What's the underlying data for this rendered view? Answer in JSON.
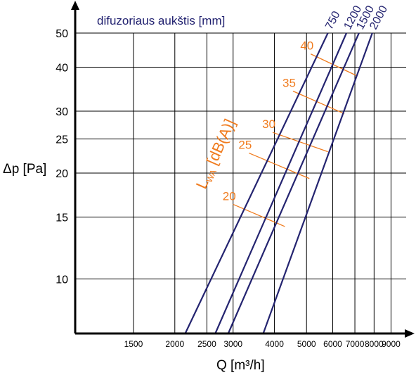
{
  "chart_data": {
    "type": "line",
    "title": "difuzoriaus aukštis [mm]",
    "xlabel": "Q [m³/h]",
    "ylabel": "Δp [Pa]",
    "xscale": "log",
    "yscale": "log",
    "xlim": [
      1000,
      10000
    ],
    "ylim": [
      7,
      50
    ],
    "xticks": [
      1500,
      2000,
      2500,
      3000,
      4000,
      5000,
      6000,
      7000,
      8000,
      9000
    ],
    "yticks": [
      10,
      15,
      20,
      25,
      30,
      40,
      50
    ],
    "grid": true,
    "series": [
      {
        "name": "750",
        "points": [
          [
            2150,
            7
          ],
          [
            5800,
            50
          ]
        ]
      },
      {
        "name": "1200",
        "points": [
          [
            2650,
            7
          ],
          [
            6600,
            50
          ]
        ]
      },
      {
        "name": "1500",
        "points": [
          [
            2900,
            7
          ],
          [
            7200,
            50
          ]
        ]
      },
      {
        "name": "2000",
        "points": [
          [
            3700,
            7
          ],
          [
            7900,
            50
          ]
        ]
      }
    ],
    "noise_annotation": {
      "label": "LWA [dB(A)]",
      "label_main": "L",
      "label_sub": "WA",
      "label_rest": " [dB(A)]",
      "lines": [
        {
          "level": "20",
          "points": [
            [
              3000,
              16.3
            ],
            [
              4300,
              14.1
            ]
          ]
        },
        {
          "level": "25",
          "points": [
            [
              3350,
              22.8
            ],
            [
              5100,
              19.3
            ]
          ]
        },
        {
          "level": "30",
          "points": [
            [
              3950,
              26.1
            ],
            [
              5800,
              23.0
            ]
          ]
        },
        {
          "level": "35",
          "points": [
            [
              4550,
              34.2
            ],
            [
              6500,
              29.5
            ]
          ]
        },
        {
          "level": "40",
          "points": [
            [
              5150,
              43.6
            ],
            [
              7100,
              37.8
            ]
          ]
        }
      ]
    },
    "colors": {
      "series": "#242470",
      "noise": "#f07c1f",
      "grid": "#000000",
      "title": "#1f1f6e"
    }
  }
}
